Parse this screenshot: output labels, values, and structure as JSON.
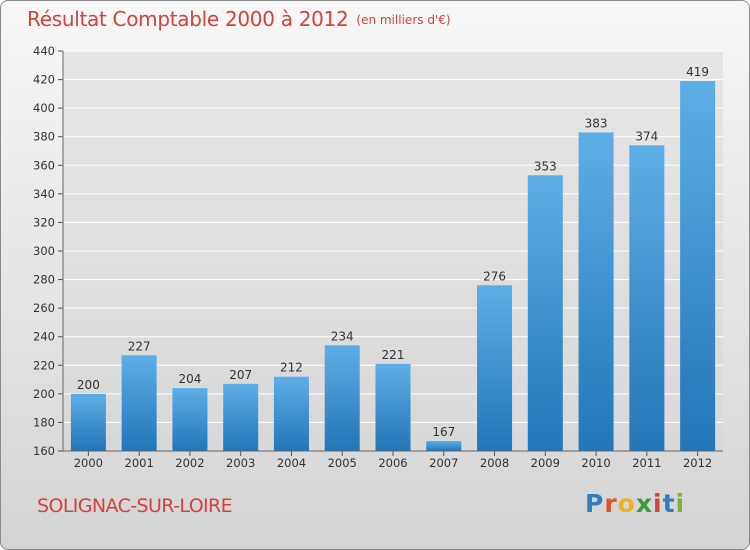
{
  "header": {
    "title": "Résultat Comptable 2000 à 2012",
    "unit": "(en milliers d'€)"
  },
  "footer": {
    "town": "SOLIGNAC-SUR-LOIRE",
    "logo": "Proxiti"
  },
  "colors": {
    "bar_top": "#5eaee6",
    "bar_bottom": "#2176b8",
    "title": "#d0443c",
    "grid": "#ffffff"
  },
  "chart_data": {
    "type": "bar",
    "title": "Résultat Comptable 2000 à 2012",
    "subtitle": "(en milliers d'€)",
    "categories": [
      "2000",
      "2001",
      "2002",
      "2003",
      "2004",
      "2005",
      "2006",
      "2007",
      "2008",
      "2009",
      "2010",
      "2011",
      "2012"
    ],
    "values": [
      200,
      227,
      204,
      207,
      212,
      234,
      221,
      167,
      276,
      353,
      383,
      374,
      419
    ],
    "ylim": [
      160,
      440
    ],
    "yticks": [
      160,
      180,
      200,
      220,
      240,
      260,
      280,
      300,
      320,
      340,
      360,
      380,
      400,
      420,
      440
    ],
    "grid": true,
    "data_labels": true
  }
}
